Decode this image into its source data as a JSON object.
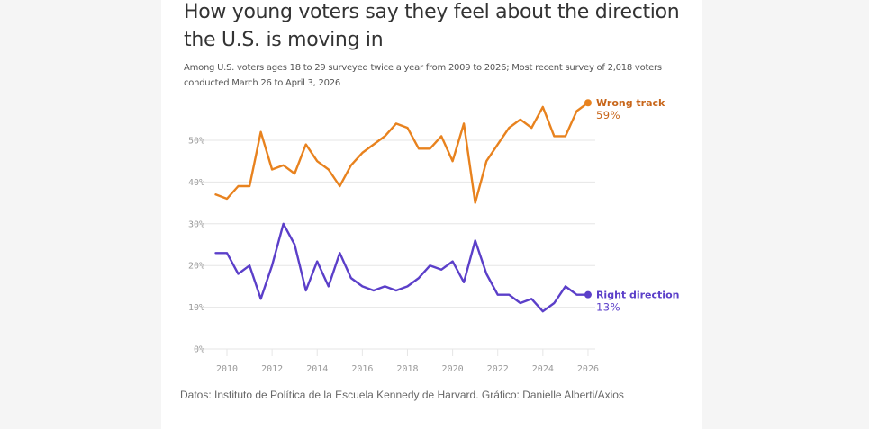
{
  "page": {
    "background": "#f5f5f5",
    "card_background": "#ffffff"
  },
  "header": {
    "title": "How young voters say they feel about the direction the U.S. is moving in",
    "subtitle": "Among U.S. voters ages 18 to 29 surveyed twice a year from 2009 to 2026; Most recent survey of 2,018 voters conducted March 26 to April 3, 2026"
  },
  "footer": {
    "source": "Datos: Instituto de Política de la Escuela Kennedy de Harvard. Gráfico: Danielle Alberti/Axios"
  },
  "chart_data": {
    "type": "line",
    "title": "How young voters say they feel about the direction the U.S. is moving in",
    "xlabel": "",
    "ylabel": "",
    "x": [
      2009.5,
      2010,
      2010.5,
      2011,
      2011.5,
      2012,
      2012.5,
      2013,
      2013.5,
      2014,
      2014.5,
      2015,
      2015.5,
      2016,
      2016.5,
      2017,
      2017.5,
      2018,
      2018.5,
      2019,
      2019.5,
      2020,
      2020.5,
      2021,
      2021.5,
      2022,
      2022.5,
      2023,
      2023.5,
      2024,
      2024.5,
      2025,
      2025.5,
      2026
    ],
    "xlim": [
      2009.5,
      2026
    ],
    "ylim": [
      0,
      60
    ],
    "x_ticks": [
      "2010",
      "2012",
      "2014",
      "2016",
      "2018",
      "2020",
      "2022",
      "2024",
      "2026"
    ],
    "x_tick_values": [
      2010,
      2012,
      2014,
      2016,
      2018,
      2020,
      2022,
      2024,
      2026
    ],
    "y_ticks": [
      "0%",
      "10%",
      "20%",
      "30%",
      "40%",
      "50%"
    ],
    "y_tick_values": [
      0,
      10,
      20,
      30,
      40,
      50
    ],
    "grid": true,
    "legend": "direct labels at line ends (right)",
    "series": [
      {
        "name": "Wrong track",
        "end_label": "59%",
        "color": "#e8821e",
        "label_color": "#c8661a",
        "values": [
          37,
          36,
          39,
          39,
          52,
          43,
          44,
          42,
          49,
          45,
          43,
          39,
          44,
          47,
          49,
          51,
          54,
          53,
          48,
          48,
          51,
          45,
          54,
          35,
          45,
          49,
          53,
          55,
          53,
          58,
          51,
          51,
          57,
          59
        ]
      },
      {
        "name": "Right direction",
        "end_label": "13%",
        "color": "#5b3fc9",
        "label_color": "#5b3fc9",
        "values": [
          23,
          23,
          18,
          20,
          12,
          20,
          30,
          25,
          14,
          21,
          15,
          23,
          17,
          15,
          14,
          15,
          14,
          15,
          17,
          20,
          19,
          21,
          16,
          26,
          18,
          13,
          13,
          11,
          12,
          9,
          11,
          15,
          13,
          13
        ]
      }
    ]
  }
}
